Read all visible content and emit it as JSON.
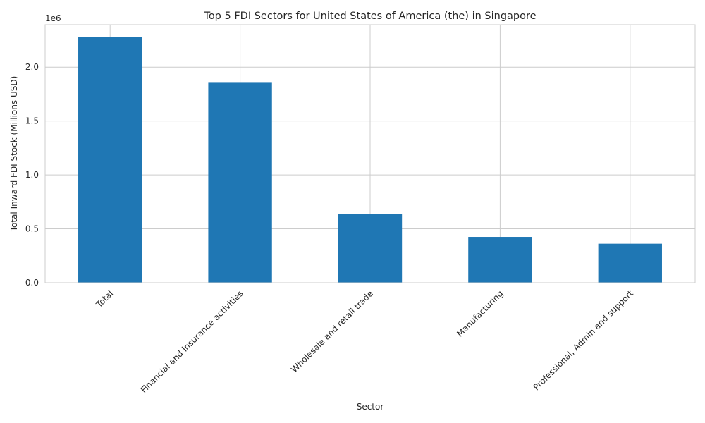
{
  "chart_data": {
    "type": "bar",
    "title": "Top 5 FDI Sectors for United States of America (the) in Singapore",
    "xlabel": "Sector",
    "ylabel": "Total Inward FDI Stock (Millions USD)",
    "y_offset_text": "1e6",
    "categories": [
      "Total",
      "Financial and insurance activities",
      "Wholesale and retail trade",
      "Manufacturing",
      "Professional, Admin and support"
    ],
    "values": [
      2280000,
      1855000,
      635000,
      425000,
      362000
    ],
    "ylim": [
      0,
      2394000
    ],
    "yticks": [
      0,
      500000,
      1000000,
      1500000,
      2000000
    ],
    "ytick_labels": [
      "0.0",
      "0.5",
      "1.0",
      "1.5",
      "2.0"
    ],
    "grid": true,
    "bar_color": "#1f77b4",
    "grid_color": "#cccccc"
  }
}
